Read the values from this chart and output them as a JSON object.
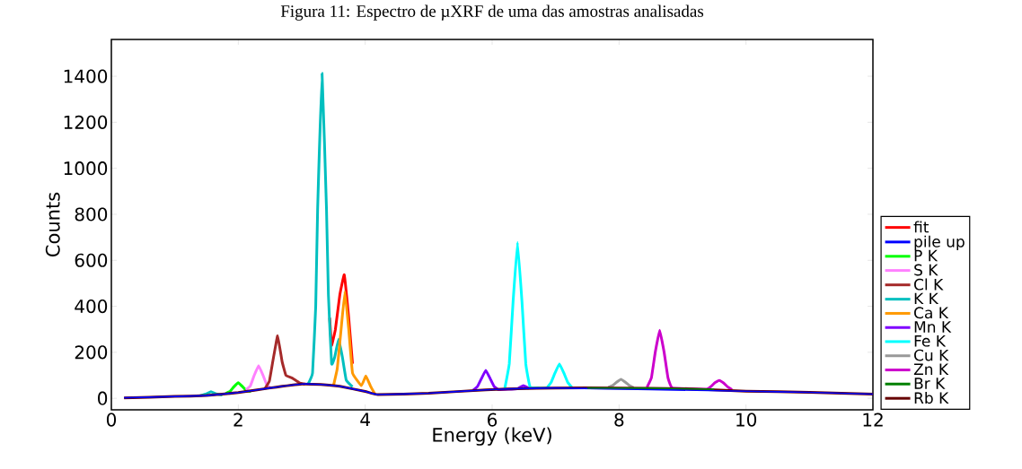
{
  "chart_data": {
    "type": "line",
    "title": "Figura 11: Espectro de µXRF de uma das amostras analisadas",
    "xlabel": "Energy (keV)",
    "ylabel": "Counts",
    "xlim": [
      0,
      12
    ],
    "ylim": [
      -50,
      1560
    ],
    "xticks": [
      0,
      2,
      4,
      6,
      8,
      10,
      12
    ],
    "yticks": [
      0,
      200,
      400,
      600,
      800,
      1000,
      1200,
      1400
    ],
    "legend": "right",
    "grid": false,
    "line_style": "solid",
    "marker": "none",
    "series": [
      {
        "name": "fit",
        "color": "#ff0000",
        "x": [
          3.44,
          3.47,
          3.53,
          3.6,
          3.67,
          3.74,
          3.8
        ],
        "values": [
          350,
          230,
          300,
          450,
          537,
          350,
          150
        ]
      },
      {
        "name": "pile up",
        "color": "#0000ff",
        "x": [
          0.2,
          1,
          1.5,
          2,
          2.5,
          3,
          3.3,
          3.6,
          4,
          4.2,
          5,
          5.9,
          6.4,
          7,
          10,
          11,
          12
        ],
        "values": [
          2,
          8,
          12,
          25,
          45,
          62,
          60,
          52,
          30,
          16,
          22,
          37,
          42,
          45,
          31,
          26,
          18
        ]
      },
      {
        "name": "P K",
        "color": "#00ff00",
        "x": [
          1.8,
          1.87,
          1.93,
          2.0,
          2.07,
          2.13,
          2.2
        ],
        "values": [
          21,
          30,
          50,
          68,
          50,
          32,
          30
        ]
      },
      {
        "name": "S K",
        "color": "#ff80ff",
        "x": [
          2.12,
          2.19,
          2.25,
          2.32,
          2.39,
          2.45,
          2.52
        ],
        "values": [
          37,
          54,
          99,
          142,
          100,
          58,
          42
        ]
      },
      {
        "name": "Cl K",
        "color": "#a52a2a",
        "x": [
          2.42,
          2.49,
          2.55,
          2.62,
          2.69,
          2.75,
          2.85,
          2.96,
          3.05
        ],
        "values": [
          42,
          75,
          170,
          272,
          160,
          100,
          88,
          68,
          62
        ]
      },
      {
        "name": "K K",
        "color": "#00bfbf",
        "x": [
          1.4,
          1.5,
          1.57,
          1.64,
          1.75,
          2.5,
          3.1,
          3.17,
          3.22,
          3.25,
          3.32,
          3.39,
          3.42,
          3.47,
          3.52,
          3.58,
          3.64,
          3.7,
          3.8
        ],
        "values": [
          12,
          20,
          29,
          20,
          14,
          null,
          62,
          110,
          400,
          820,
          1413,
          820,
          450,
          150,
          180,
          257,
          180,
          80,
          50
        ]
      },
      {
        "name": "Ca K",
        "color": "#ff9900",
        "x": [
          3.5,
          3.56,
          3.62,
          3.68,
          3.74,
          3.8,
          3.94,
          4.01,
          4.08,
          4.15
        ],
        "values": [
          55,
          130,
          300,
          465,
          300,
          110,
          55,
          97,
          55,
          20
        ]
      },
      {
        "name": "Mn K",
        "color": "#7f00ff",
        "x": [
          5.7,
          5.77,
          5.83,
          5.9,
          5.97,
          6.03,
          6.1,
          6.4,
          6.49,
          6.58
        ],
        "values": [
          35,
          52,
          85,
          122,
          85,
          52,
          38,
          42,
          55,
          43
        ]
      },
      {
        "name": "Fe K",
        "color": "#00ffff",
        "x": [
          6.2,
          6.27,
          6.33,
          6.4,
          6.47,
          6.53,
          6.6,
          6.86,
          6.93,
          6.99,
          7.06,
          7.13,
          7.19,
          7.26
        ],
        "values": [
          44,
          150,
          420,
          678,
          420,
          150,
          48,
          46,
          70,
          110,
          150,
          110,
          70,
          46
        ]
      },
      {
        "name": "Cu K",
        "color": "#999999",
        "x": [
          7.83,
          7.9,
          7.96,
          8.03,
          8.1,
          8.16,
          8.23
        ],
        "values": [
          48,
          56,
          70,
          83,
          70,
          56,
          46
        ]
      },
      {
        "name": "Zn K",
        "color": "#cc00cc",
        "x": [
          8.44,
          8.51,
          8.57,
          8.64,
          8.71,
          8.77,
          8.84,
          9.38,
          9.45,
          9.51,
          9.58,
          9.65,
          9.71,
          9.78
        ],
        "values": [
          48,
          90,
          200,
          296,
          200,
          90,
          45,
          40,
          52,
          68,
          78,
          66,
          50,
          38
        ]
      },
      {
        "name": "Br K",
        "color": "#008000",
        "x": [
          7.5,
          8.5,
          9.5
        ],
        "values": [
          45,
          44,
          39
        ]
      },
      {
        "name": "Rb K",
        "color": "#660000",
        "x": [
          0.2,
          1,
          1.5,
          2,
          2.5,
          3,
          3.3,
          3.6,
          4,
          4.2,
          5,
          5.9,
          6.4,
          7,
          8,
          9,
          10,
          11,
          12
        ],
        "values": [
          2,
          8,
          12,
          25,
          45,
          62,
          60,
          52,
          30,
          16,
          22,
          37,
          42,
          45,
          45,
          42,
          31,
          26,
          18
        ]
      }
    ]
  }
}
